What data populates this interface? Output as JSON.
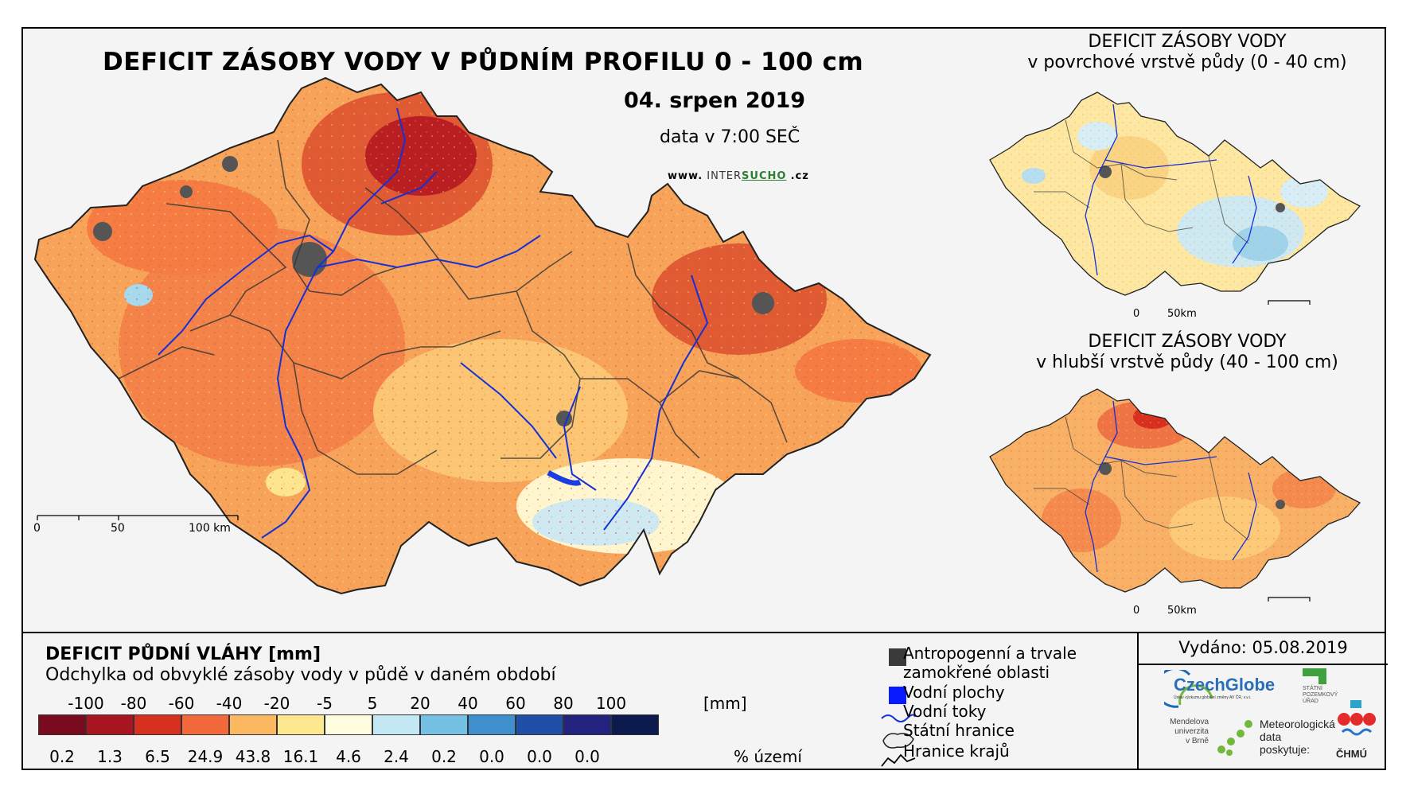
{
  "map": {
    "title": "DEFICIT ZÁSOBY VODY V PŮDNÍM PROFILU 0 - 100 cm",
    "date": "04. srpen 2019",
    "time": "data v 7:00 SEČ",
    "website": {
      "prefix": "www.",
      "intersucho_a": "INTER",
      "intersucho_b": "SUCHO",
      "suffix": ".cz"
    },
    "scale": [
      "0",
      "50",
      "100 km"
    ]
  },
  "insets": [
    {
      "title": "DEFICIT ZÁSOBY VODY",
      "subtitle": "v povrchové vrstvě půdy (0 - 40 cm)",
      "scale": [
        "0",
        "50km"
      ]
    },
    {
      "title": "DEFICIT ZÁSOBY VODY",
      "subtitle": "v hlubší vrstvě půdy (40 - 100 cm)",
      "scale": [
        "0",
        "50km"
      ]
    }
  ],
  "legend": {
    "title": "DEFICIT PŮDNÍ VLÁHY [mm]",
    "subtitle": "Odchylka od obvyklé zásoby vody v půdě v daném období",
    "unit": "[mm]",
    "thresholds": [
      "-100",
      "-80",
      "-60",
      "-40",
      "-20",
      "-5",
      "5",
      "20",
      "40",
      "60",
      "80",
      "100"
    ],
    "classes": [
      {
        "color": "#7a0a1e",
        "percent": "0.2"
      },
      {
        "color": "#a8141f",
        "percent": "1.3"
      },
      {
        "color": "#d7301f",
        "percent": "6.5"
      },
      {
        "color": "#f26a3c",
        "percent": "24.9"
      },
      {
        "color": "#fbb861",
        "percent": "43.8"
      },
      {
        "color": "#fde88f",
        "percent": "16.1"
      },
      {
        "color": "#fffde0",
        "percent": "4.6"
      },
      {
        "color": "#c4e7f4",
        "percent": "2.4"
      },
      {
        "color": "#74c1e4",
        "percent": "0.2"
      },
      {
        "color": "#3f8fcf",
        "percent": "0.0"
      },
      {
        "color": "#1f4fa6",
        "percent": "0.0"
      },
      {
        "color": "#23237f",
        "percent": "0.0"
      },
      {
        "color": "#0c1a4e",
        "percent": ""
      }
    ],
    "percent_label": "% území"
  },
  "symbols": {
    "anthropogenic": [
      "Antropogenní a trvale",
      "zamokřené oblasti"
    ],
    "water_bodies": "Vodní plochy",
    "rivers": "Vodní toky",
    "state_border": "Státní hranice",
    "region_border": "Hranice krajů"
  },
  "issued": "Vydáno: 05.08.2019",
  "logos": {
    "czechglobe": "CzechGlobe",
    "czechglobe_sub": "Ústav výzkumu globální změny AV ČR, v.v.i.",
    "spu": [
      "STÁTNÍ",
      "POZEMKOVÝ",
      "ÚŘAD"
    ],
    "mendelu": [
      "Mendelova",
      "univerzita",
      "v Brně"
    ],
    "meteo": [
      "Meteorologická",
      "data",
      "poskytuje:"
    ],
    "chmu": "ČHMÚ"
  }
}
